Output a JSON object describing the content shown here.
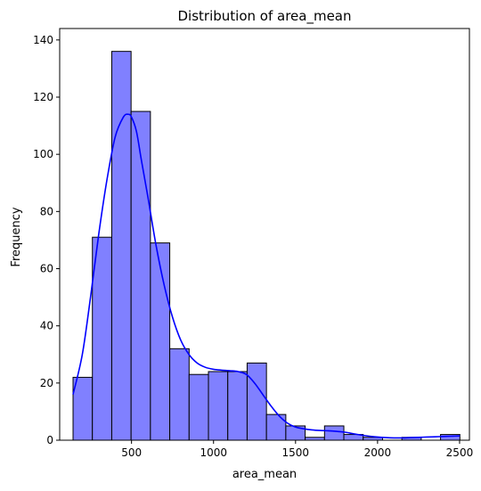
{
  "chart_data": {
    "type": "bar",
    "title": "Distribution of area_mean",
    "xlabel": "area_mean",
    "ylabel": "Frequency",
    "xlim": [
      62,
      2560
    ],
    "ylim": [
      0,
      144
    ],
    "xticks": [
      500,
      1000,
      1500,
      2000,
      2500
    ],
    "yticks": [
      0,
      20,
      40,
      60,
      80,
      100,
      120,
      140
    ],
    "bin_edges": [
      143.5,
      261.4,
      379.4,
      497.3,
      615.2,
      733.1,
      851.1,
      969.0,
      1086.9,
      1204.8,
      1322.7,
      1440.7,
      1558.6,
      1676.5,
      1794.4,
      1912.4,
      2030.3,
      2148.2,
      2266.1,
      2384.0,
      2501.9
    ],
    "counts": [
      22,
      71,
      136,
      115,
      69,
      32,
      23,
      24,
      24,
      27,
      9,
      5,
      1,
      5,
      2,
      1,
      0,
      1,
      0,
      2
    ],
    "kde": {
      "x": [
        143.5,
        200,
        250,
        300,
        350,
        400,
        450,
        480,
        500,
        530,
        560,
        600,
        650,
        700,
        750,
        800,
        850,
        900,
        950,
        1000,
        1050,
        1100,
        1150,
        1200,
        1250,
        1300,
        1350,
        1400,
        1450,
        1500,
        1550,
        1600,
        1650,
        1700,
        1750,
        1800,
        1850,
        1900,
        1950,
        2000,
        2050,
        2100,
        2150,
        2200,
        2250,
        2300,
        2350,
        2400,
        2450,
        2501.9
      ],
      "y": [
        16,
        30,
        50,
        72,
        91,
        106,
        113,
        114,
        113,
        108,
        98,
        85,
        68,
        54,
        43,
        35,
        30,
        27,
        25.5,
        24.8,
        24.5,
        24.3,
        24,
        23,
        20,
        16,
        12,
        8.5,
        6,
        4.6,
        4,
        3.6,
        3.4,
        3.3,
        3.1,
        2.8,
        2.3,
        1.8,
        1.4,
        1.1,
        0.9,
        0.8,
        0.8,
        0.9,
        1,
        1.1,
        1.2,
        1.3,
        1.4,
        1.5
      ]
    },
    "bar_color": "#8080ff",
    "bar_edge": "#000000",
    "kde_color": "#0000ff",
    "grid": false,
    "legend": "none"
  }
}
